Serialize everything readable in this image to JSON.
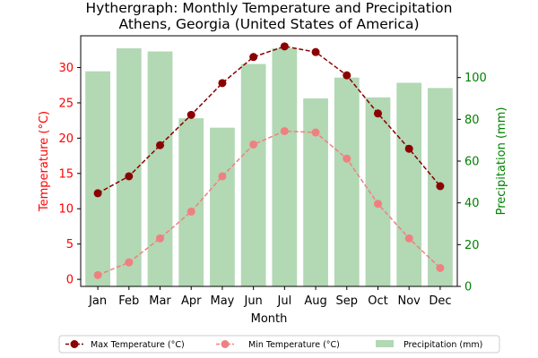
{
  "chart_data": {
    "type": "bar",
    "title_line1": "Hythergraph: Monthly Temperature and Precipitation",
    "title_line2": "Athens, Georgia (United States of America)",
    "xlabel": "Month",
    "ylabel_left": "Temperature (°C)",
    "ylabel_right": "Precipitation (mm)",
    "categories": [
      "Jan",
      "Feb",
      "Mar",
      "Apr",
      "May",
      "Jun",
      "Jul",
      "Aug",
      "Sep",
      "Oct",
      "Nov",
      "Dec"
    ],
    "ylim_left": [
      -1,
      34.5
    ],
    "yticks_left": [
      0,
      5,
      10,
      15,
      20,
      25,
      30
    ],
    "ylim_right": [
      0,
      120
    ],
    "yticks_right": [
      0,
      20,
      40,
      60,
      80,
      100
    ],
    "grid": false,
    "legend_position": "bottom",
    "series": [
      {
        "name": "Max Temperature (°C)",
        "kind": "line",
        "axis": "left",
        "color": "#8b0000",
        "values": [
          12.2,
          14.6,
          19.0,
          23.3,
          27.8,
          31.5,
          33.0,
          32.2,
          28.9,
          23.5,
          18.5,
          13.2
        ]
      },
      {
        "name": "Min Temperature (°C)",
        "kind": "line",
        "axis": "left",
        "color": "#f08080",
        "values": [
          0.6,
          2.4,
          5.8,
          9.6,
          14.6,
          19.1,
          21.0,
          20.8,
          17.1,
          10.7,
          5.8,
          1.6
        ]
      },
      {
        "name": "Precipitation (mm)",
        "kind": "bar",
        "axis": "right",
        "color": "#b2d8b4",
        "values": [
          103,
          114,
          112.5,
          80.5,
          76,
          106.5,
          114,
          90,
          100,
          90.5,
          97.5,
          95
        ]
      }
    ],
    "left_axis_color": "#ff0000",
    "right_axis_color": "#008000"
  }
}
